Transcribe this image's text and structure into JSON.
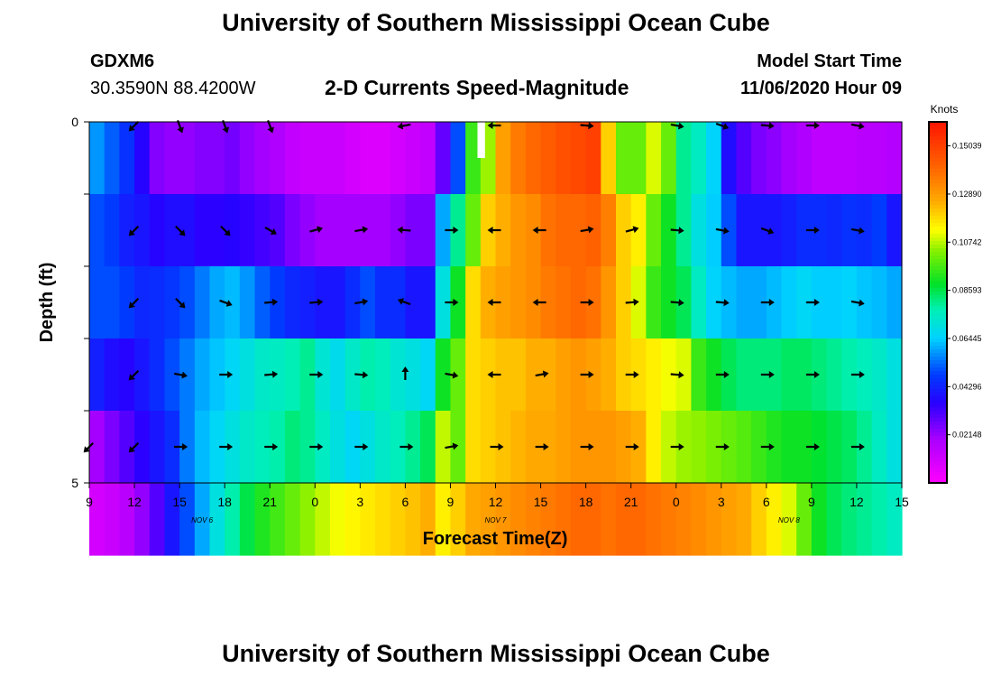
{
  "header": {
    "title": "University of Southern Mississippi Ocean Cube",
    "station_id": "GDXM6",
    "location": "30.3590N 88.4200W",
    "subtitle": "2-D Currents Speed-Magnitude",
    "model_start_label": "Model Start Time",
    "model_start_value": "11/06/2020 Hour 09"
  },
  "footer": {
    "title": "University of Southern Mississippi Ocean Cube"
  },
  "chart_data": {
    "type": "heatmap",
    "title": "2-D Currents Speed-Magnitude",
    "xlabel": "Forecast Time(Z)",
    "ylabel": "Depth (ft)",
    "xlim": [
      0,
      54
    ],
    "ylim": [
      0,
      5
    ],
    "x_tick_labels": [
      "9",
      "12",
      "15",
      "18",
      "21",
      "0",
      "3",
      "6",
      "9",
      "12",
      "15",
      "18",
      "21",
      "0",
      "3",
      "6",
      "9",
      "12",
      "15"
    ],
    "y_tick_labels": [
      "0",
      "5"
    ],
    "date_labels": [
      {
        "text": "NOV  6",
        "x": 7.5
      },
      {
        "text": "NOV  7",
        "x": 27
      },
      {
        "text": "NOV  8",
        "x": 46.5
      }
    ],
    "colorbar": {
      "unit": "Knots",
      "min": 0.0,
      "max": 0.1611,
      "tick_labels": [
        "0.15039",
        "0.12890",
        "0.10742",
        "0.08593",
        "0.06445",
        "0.04296",
        "0.02148"
      ],
      "tick_values": [
        0.15039,
        0.1289,
        0.10742,
        0.08593,
        0.06445,
        0.04296,
        0.02148
      ]
    },
    "speed_grid": [
      [
        0.058,
        0.052,
        0.046,
        0.036,
        0.024,
        0.022,
        0.022,
        0.024,
        0.024,
        0.026,
        0.022,
        0.02,
        0.018,
        0.014,
        0.012,
        0.012,
        0.012,
        0.01,
        0.008,
        0.008,
        0.01,
        0.012,
        0.014,
        0.028,
        0.05,
        0.095,
        0.105,
        0.128,
        0.136,
        0.14,
        0.143,
        0.146,
        0.148,
        0.15,
        0.12,
        0.1,
        0.1,
        0.11,
        0.1,
        0.08,
        0.075,
        0.065,
        0.038,
        0.03,
        0.025,
        0.023,
        0.02,
        0.018,
        0.015,
        0.015,
        0.015,
        0.016,
        0.016,
        0.017
      ],
      [
        0.05,
        0.048,
        0.042,
        0.04,
        0.036,
        0.038,
        0.038,
        0.035,
        0.035,
        0.036,
        0.034,
        0.032,
        0.03,
        0.025,
        0.022,
        0.02,
        0.02,
        0.02,
        0.02,
        0.02,
        0.022,
        0.025,
        0.025,
        0.06,
        0.08,
        0.1,
        0.12,
        0.125,
        0.13,
        0.132,
        0.138,
        0.14,
        0.14,
        0.142,
        0.135,
        0.12,
        0.115,
        0.1,
        0.09,
        0.08,
        0.07,
        0.064,
        0.05,
        0.04,
        0.04,
        0.04,
        0.042,
        0.045,
        0.045,
        0.044,
        0.046,
        0.045,
        0.048,
        0.04
      ],
      [
        0.05,
        0.05,
        0.048,
        0.044,
        0.045,
        0.047,
        0.05,
        0.055,
        0.06,
        0.062,
        0.058,
        0.052,
        0.048,
        0.044,
        0.042,
        0.04,
        0.04,
        0.045,
        0.05,
        0.045,
        0.045,
        0.04,
        0.04,
        0.07,
        0.09,
        0.118,
        0.125,
        0.128,
        0.13,
        0.132,
        0.136,
        0.138,
        0.14,
        0.138,
        0.13,
        0.12,
        0.11,
        0.095,
        0.09,
        0.085,
        0.075,
        0.065,
        0.062,
        0.06,
        0.06,
        0.062,
        0.064,
        0.066,
        0.064,
        0.064,
        0.065,
        0.063,
        0.062,
        0.06
      ],
      [
        0.042,
        0.038,
        0.036,
        0.04,
        0.045,
        0.05,
        0.055,
        0.06,
        0.063,
        0.066,
        0.07,
        0.074,
        0.075,
        0.077,
        0.08,
        0.072,
        0.068,
        0.074,
        0.078,
        0.076,
        0.072,
        0.07,
        0.066,
        0.09,
        0.1,
        0.118,
        0.12,
        0.122,
        0.122,
        0.125,
        0.125,
        0.128,
        0.13,
        0.128,
        0.125,
        0.12,
        0.118,
        0.115,
        0.112,
        0.11,
        0.095,
        0.09,
        0.085,
        0.082,
        0.082,
        0.082,
        0.084,
        0.084,
        0.082,
        0.08,
        0.078,
        0.076,
        0.074,
        0.07
      ],
      [
        0.02,
        0.025,
        0.03,
        0.035,
        0.04,
        0.045,
        0.055,
        0.062,
        0.066,
        0.07,
        0.074,
        0.076,
        0.078,
        0.082,
        0.08,
        0.075,
        0.07,
        0.066,
        0.07,
        0.074,
        0.076,
        0.08,
        0.085,
        0.108,
        0.1,
        0.118,
        0.12,
        0.122,
        0.124,
        0.126,
        0.126,
        0.128,
        0.13,
        0.13,
        0.13,
        0.128,
        0.125,
        0.115,
        0.108,
        0.105,
        0.104,
        0.102,
        0.1,
        0.098,
        0.095,
        0.092,
        0.09,
        0.09,
        0.088,
        0.086,
        0.084,
        0.08,
        0.075,
        0.07
      ],
      [
        0.01,
        0.012,
        0.016,
        0.022,
        0.03,
        0.04,
        0.05,
        0.06,
        0.07,
        0.078,
        0.086,
        0.092,
        0.096,
        0.1,
        0.104,
        0.108,
        0.112,
        0.114,
        0.116,
        0.118,
        0.12,
        0.122,
        0.125,
        0.115,
        0.12,
        0.126,
        0.128,
        0.13,
        0.132,
        0.134,
        0.136,
        0.138,
        0.14,
        0.14,
        0.138,
        0.14,
        0.14,
        0.138,
        0.136,
        0.134,
        0.132,
        0.13,
        0.128,
        0.126,
        0.12,
        0.115,
        0.11,
        0.1,
        0.09,
        0.085,
        0.082,
        0.08,
        0.078,
        0.075
      ]
    ],
    "vectors": [
      {
        "x": 3,
        "depth": 0,
        "dir": 225
      },
      {
        "x": 6,
        "depth": 0,
        "dir": 160
      },
      {
        "x": 9,
        "depth": 0,
        "dir": 160
      },
      {
        "x": 12,
        "depth": 0,
        "dir": 160
      },
      {
        "x": 21,
        "depth": 0,
        "dir": 260
      },
      {
        "x": 27,
        "depth": 0,
        "dir": 270
      },
      {
        "x": 33,
        "depth": 0,
        "dir": 95
      },
      {
        "x": 39,
        "depth": 0,
        "dir": 100
      },
      {
        "x": 42,
        "depth": 0,
        "dir": 110
      },
      {
        "x": 45,
        "depth": 0,
        "dir": 95
      },
      {
        "x": 48,
        "depth": 0,
        "dir": 90
      },
      {
        "x": 51,
        "depth": 0,
        "dir": 100
      },
      {
        "x": 3,
        "depth": 1,
        "dir": 225
      },
      {
        "x": 6,
        "depth": 1,
        "dir": 135
      },
      {
        "x": 9,
        "depth": 1,
        "dir": 135
      },
      {
        "x": 12,
        "depth": 1,
        "dir": 120
      },
      {
        "x": 15,
        "depth": 1,
        "dir": 75
      },
      {
        "x": 18,
        "depth": 1,
        "dir": 80
      },
      {
        "x": 21,
        "depth": 1,
        "dir": 275
      },
      {
        "x": 24,
        "depth": 1,
        "dir": 90
      },
      {
        "x": 27,
        "depth": 1,
        "dir": 270
      },
      {
        "x": 30,
        "depth": 1,
        "dir": 270
      },
      {
        "x": 33,
        "depth": 1,
        "dir": 80
      },
      {
        "x": 36,
        "depth": 1,
        "dir": 75
      },
      {
        "x": 39,
        "depth": 1,
        "dir": 95
      },
      {
        "x": 42,
        "depth": 1,
        "dir": 100
      },
      {
        "x": 45,
        "depth": 1,
        "dir": 110
      },
      {
        "x": 48,
        "depth": 1,
        "dir": 90
      },
      {
        "x": 51,
        "depth": 1,
        "dir": 100
      },
      {
        "x": 3,
        "depth": 2,
        "dir": 225
      },
      {
        "x": 6,
        "depth": 2,
        "dir": 135
      },
      {
        "x": 9,
        "depth": 2,
        "dir": 110
      },
      {
        "x": 12,
        "depth": 2,
        "dir": 85
      },
      {
        "x": 15,
        "depth": 2,
        "dir": 85
      },
      {
        "x": 18,
        "depth": 2,
        "dir": 80
      },
      {
        "x": 21,
        "depth": 2,
        "dir": 290
      },
      {
        "x": 24,
        "depth": 2,
        "dir": 90
      },
      {
        "x": 27,
        "depth": 2,
        "dir": 270
      },
      {
        "x": 30,
        "depth": 2,
        "dir": 270
      },
      {
        "x": 33,
        "depth": 2,
        "dir": 90
      },
      {
        "x": 36,
        "depth": 2,
        "dir": 85
      },
      {
        "x": 39,
        "depth": 2,
        "dir": 95
      },
      {
        "x": 42,
        "depth": 2,
        "dir": 95
      },
      {
        "x": 45,
        "depth": 2,
        "dir": 90
      },
      {
        "x": 48,
        "depth": 2,
        "dir": 90
      },
      {
        "x": 51,
        "depth": 2,
        "dir": 100
      },
      {
        "x": 3,
        "depth": 3,
        "dir": 225
      },
      {
        "x": 6,
        "depth": 3,
        "dir": 100
      },
      {
        "x": 9,
        "depth": 3,
        "dir": 90
      },
      {
        "x": 12,
        "depth": 3,
        "dir": 85
      },
      {
        "x": 15,
        "depth": 3,
        "dir": 90
      },
      {
        "x": 18,
        "depth": 3,
        "dir": 95
      },
      {
        "x": 21,
        "depth": 3,
        "dir": 0
      },
      {
        "x": 24,
        "depth": 3,
        "dir": 100
      },
      {
        "x": 27,
        "depth": 3,
        "dir": 270
      },
      {
        "x": 30,
        "depth": 3,
        "dir": 80
      },
      {
        "x": 33,
        "depth": 3,
        "dir": 90
      },
      {
        "x": 36,
        "depth": 3,
        "dir": 90
      },
      {
        "x": 39,
        "depth": 3,
        "dir": 95
      },
      {
        "x": 42,
        "depth": 3,
        "dir": 90
      },
      {
        "x": 45,
        "depth": 3,
        "dir": 90
      },
      {
        "x": 48,
        "depth": 3,
        "dir": 90
      },
      {
        "x": 51,
        "depth": 3,
        "dir": 90
      },
      {
        "x": 0,
        "depth": 4,
        "dir": 225
      },
      {
        "x": 3,
        "depth": 4,
        "dir": 225
      },
      {
        "x": 6,
        "depth": 4,
        "dir": 90
      },
      {
        "x": 9,
        "depth": 4,
        "dir": 90
      },
      {
        "x": 12,
        "depth": 4,
        "dir": 90
      },
      {
        "x": 15,
        "depth": 4,
        "dir": 90
      },
      {
        "x": 18,
        "depth": 4,
        "dir": 90
      },
      {
        "x": 21,
        "depth": 4,
        "dir": 90
      },
      {
        "x": 24,
        "depth": 4,
        "dir": 80
      },
      {
        "x": 27,
        "depth": 4,
        "dir": 90
      },
      {
        "x": 30,
        "depth": 4,
        "dir": 90
      },
      {
        "x": 33,
        "depth": 4,
        "dir": 90
      },
      {
        "x": 36,
        "depth": 4,
        "dir": 90
      },
      {
        "x": 39,
        "depth": 4,
        "dir": 90
      },
      {
        "x": 42,
        "depth": 4,
        "dir": 90
      },
      {
        "x": 45,
        "depth": 4,
        "dir": 90
      },
      {
        "x": 48,
        "depth": 4,
        "dir": 90
      },
      {
        "x": 51,
        "depth": 4,
        "dir": 90
      }
    ]
  },
  "colors": {
    "background": "#ffffff",
    "axis": "#000000",
    "vector": "#000000",
    "missing_cell": "#ffffff"
  }
}
